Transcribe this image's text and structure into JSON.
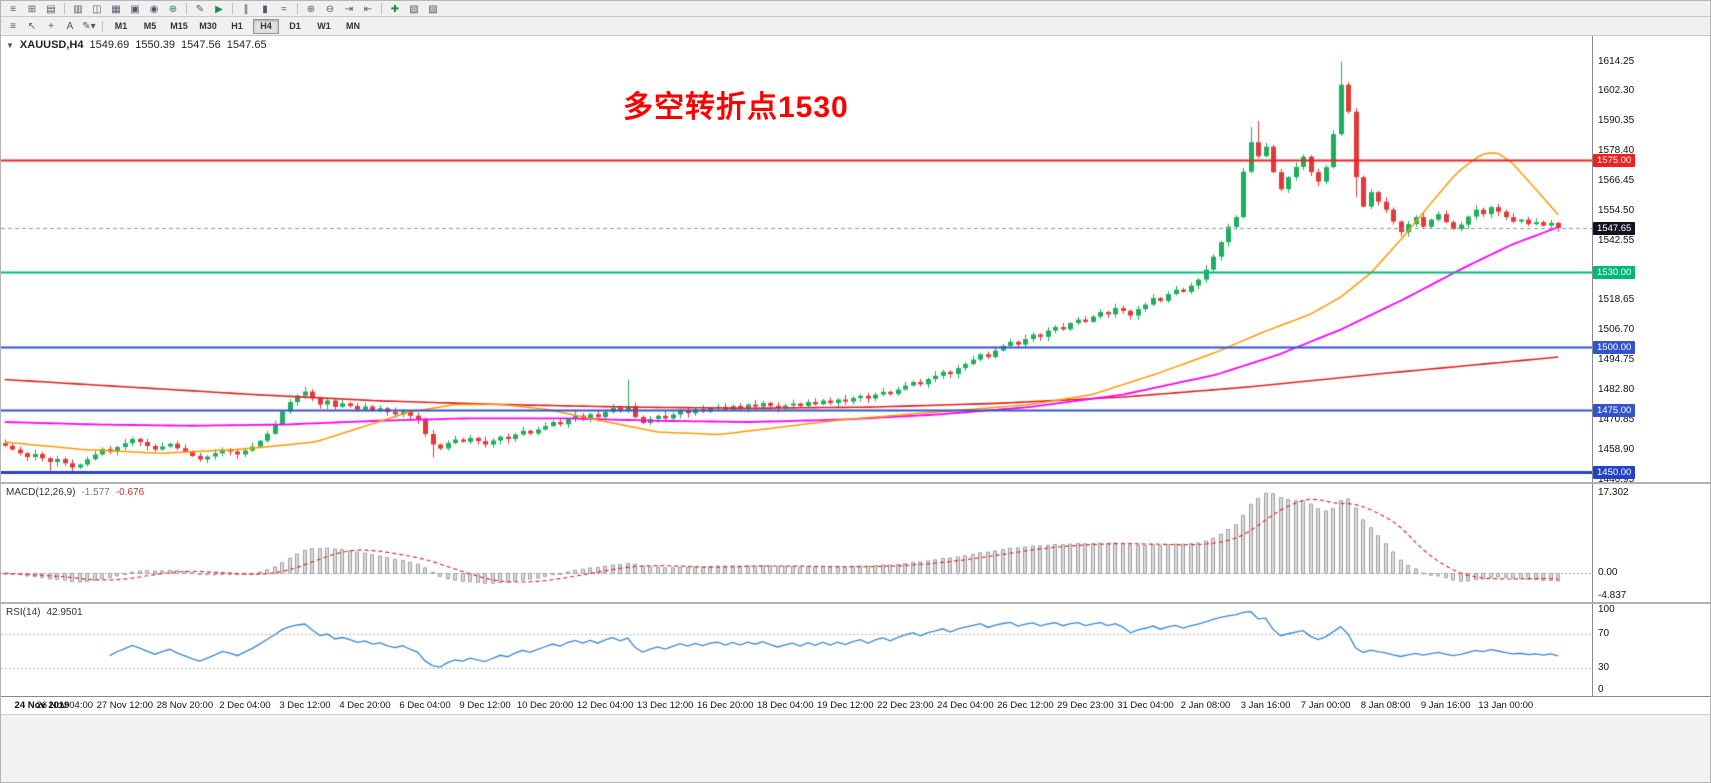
{
  "toolbar_top": {
    "buttons": [
      {
        "name": "menu",
        "glyph": "≡"
      },
      {
        "name": "new-chart",
        "glyph": "⊞"
      },
      {
        "name": "profiles",
        "glyph": "▤"
      },
      {
        "sep": true
      },
      {
        "name": "market-watch",
        "glyph": "▥"
      },
      {
        "name": "data-window",
        "glyph": "◫"
      },
      {
        "name": "navigator",
        "glyph": "▦"
      },
      {
        "name": "terminal",
        "glyph": "▣"
      },
      {
        "name": "strategy-tester",
        "glyph": "◉"
      },
      {
        "name": "new-order",
        "glyph": "⊕",
        "color": "#1a8f3c"
      },
      {
        "sep": true
      },
      {
        "name": "metaeditor",
        "glyph": "✎"
      },
      {
        "name": "autotrading",
        "glyph": "▶",
        "color": "#1a8f3c"
      },
      {
        "sep": true
      },
      {
        "name": "bar-chart",
        "glyph": "∥"
      },
      {
        "name": "candlestick-chart",
        "glyph": "▮"
      },
      {
        "name": "line-chart",
        "glyph": "≈"
      },
      {
        "sep": true
      },
      {
        "name": "zoom-in",
        "glyph": "⊕"
      },
      {
        "name": "zoom-out",
        "glyph": "⊖"
      },
      {
        "name": "auto-scroll",
        "glyph": "⇥"
      },
      {
        "name": "chart-shift",
        "glyph": "⇤"
      },
      {
        "sep": true
      },
      {
        "name": "indicators",
        "glyph": "✚",
        "color": "#1a8f3c"
      },
      {
        "name": "periods",
        "glyph": "▧"
      },
      {
        "name": "templates",
        "glyph": "▨"
      }
    ]
  },
  "toolbar_tf": {
    "tools": [
      {
        "name": "windows",
        "glyph": "≡"
      },
      {
        "name": "cursor",
        "glyph": "↖"
      },
      {
        "name": "crosshair",
        "glyph": "+"
      },
      {
        "name": "text-label",
        "glyph": "A"
      },
      {
        "name": "draw-tools",
        "glyph": "✎▾"
      }
    ],
    "timeframes": [
      "M1",
      "M5",
      "M15",
      "M30",
      "H1",
      "H4",
      "D1",
      "W1",
      "MN"
    ],
    "active": "H4"
  },
  "chart": {
    "header": {
      "collapse_glyph": "▼",
      "symbol": "XAUUSD,H4",
      "open": "1549.69",
      "high": "1550.39",
      "low": "1547.56",
      "close": "1547.65"
    },
    "annotation": {
      "text": "多空转折点1530",
      "color": "#fe0000"
    },
    "price_scale": {
      "min": 1446.0,
      "max": 1624.5,
      "ticks": [
        1614.25,
        1602.3,
        1590.35,
        1578.4,
        1566.45,
        1554.5,
        1542.55,
        1530.6,
        1518.65,
        1506.7,
        1494.75,
        1482.8,
        1470.85,
        1458.9,
        1446.95
      ]
    },
    "levels": [
      {
        "name": "resistance-line-1575",
        "price": 1575.0,
        "label": "1575.00",
        "color": "#f02020",
        "line_width": 2
      },
      {
        "name": "pivot-line-1530",
        "price": 1530.0,
        "label": "1530.00",
        "color": "#00b876",
        "line_width": 2
      },
      {
        "name": "support-line-1500",
        "price": 1500.0,
        "label": "1500.00",
        "color": "#3353cc",
        "line_width": 2
      },
      {
        "name": "support-line-1475",
        "price": 1475.0,
        "label": "1475.00",
        "color": "#3353cc",
        "line_width": 2
      },
      {
        "name": "support-line-1450",
        "price": 1450.0,
        "label": "1450.00",
        "color": "#2442c8",
        "line_width": 3
      }
    ],
    "current_price": {
      "price": 1547.65,
      "label": "1547.65",
      "tag_color": "#13131f",
      "line_color": "#8e99ad"
    },
    "candles": {
      "up_color": "#1fae5e",
      "down_color": "#e23a3a",
      "first_open": 1461.5,
      "wick_cycle": [
        1.5,
        0.7,
        1.2,
        0.5,
        1.8,
        0.9,
        0.6,
        1.3,
        0.8,
        1.6,
        0.4,
        1.1
      ],
      "high_overrides": {
        "83": 1487.0,
        "166": 1588.0,
        "167": 1590.4,
        "178": 1614.25,
        "179": 1606.0
      },
      "low_overrides": {
        "6": 1450.4,
        "9": 1449.6,
        "57": 1455.8,
        "180": 1560.0
      },
      "closes": [
        1460.5,
        1459.0,
        1457.5,
        1456.0,
        1457.2,
        1455.5,
        1454.0,
        1455.2,
        1453.5,
        1451.8,
        1453.0,
        1455.1,
        1457.0,
        1459.2,
        1458.1,
        1460.0,
        1461.5,
        1463.2,
        1462.0,
        1460.4,
        1459.0,
        1460.2,
        1461.3,
        1459.5,
        1458.0,
        1456.4,
        1455.0,
        1456.2,
        1457.5,
        1459.0,
        1458.2,
        1457.0,
        1458.6,
        1460.2,
        1462.5,
        1465.3,
        1469.0,
        1474.2,
        1478.0,
        1480.6,
        1482.2,
        1479.5,
        1477.0,
        1478.6,
        1476.1,
        1477.5,
        1476.4,
        1475.0,
        1476.2,
        1474.6,
        1475.5,
        1474.0,
        1473.1,
        1474.2,
        1472.5,
        1471.0,
        1465.2,
        1461.0,
        1459.4,
        1461.6,
        1463.0,
        1462.1,
        1463.6,
        1462.4,
        1461.0,
        1462.6,
        1464.1,
        1463.2,
        1465.0,
        1466.5,
        1465.4,
        1467.0,
        1468.4,
        1470.0,
        1469.1,
        1471.2,
        1472.6,
        1471.5,
        1473.1,
        1472.0,
        1474.0,
        1475.6,
        1474.4,
        1476.2,
        1472.0,
        1469.6,
        1471.2,
        1472.5,
        1471.4,
        1473.0,
        1474.6,
        1473.5,
        1475.1,
        1474.2,
        1475.6,
        1476.1,
        1475.0,
        1476.4,
        1475.4,
        1477.0,
        1476.2,
        1477.6,
        1476.5,
        1475.6,
        1476.6,
        1477.4,
        1476.4,
        1478.0,
        1477.1,
        1478.6,
        1477.6,
        1479.0,
        1478.2,
        1479.6,
        1480.5,
        1479.4,
        1481.0,
        1482.1,
        1481.2,
        1483.0,
        1484.6,
        1486.0,
        1485.1,
        1487.2,
        1488.5,
        1490.1,
        1489.2,
        1491.6,
        1493.2,
        1495.0,
        1497.1,
        1496.0,
        1498.6,
        1500.5,
        1502.1,
        1501.0,
        1503.2,
        1505.0,
        1504.1,
        1506.6,
        1508.0,
        1507.1,
        1509.6,
        1511.0,
        1510.1,
        1512.2,
        1514.0,
        1513.1,
        1515.6,
        1514.5,
        1512.6,
        1515.2,
        1517.0,
        1519.6,
        1518.5,
        1521.2,
        1523.0,
        1522.1,
        1524.6,
        1527.0,
        1531.0,
        1536.2,
        1542.0,
        1548.1,
        1552.0,
        1570.2,
        1582.0,
        1576.4,
        1580.2,
        1570.0,
        1563.2,
        1568.0,
        1572.1,
        1576.2,
        1570.0,
        1566.2,
        1572.0,
        1585.2,
        1605.0,
        1594.2,
        1568.0,
        1556.2,
        1562.0,
        1558.2,
        1555.0,
        1550.2,
        1546.0,
        1549.2,
        1552.0,
        1548.2,
        1551.0,
        1553.2,
        1550.0,
        1547.2,
        1549.0,
        1552.2,
        1555.0,
        1553.2,
        1556.0,
        1554.2,
        1552.0,
        1550.2,
        1551.0,
        1549.2,
        1550.0,
        1548.6,
        1549.7,
        1547.65
      ]
    },
    "mas": [
      {
        "name": "ma-slow-red",
        "color": "#e02020",
        "width": 1.6,
        "points": [
          [
            0,
            1487
          ],
          [
            0.08,
            1484
          ],
          [
            0.16,
            1481
          ],
          [
            0.24,
            1478.5
          ],
          [
            0.32,
            1477
          ],
          [
            0.4,
            1476
          ],
          [
            0.48,
            1475.5
          ],
          [
            0.56,
            1476
          ],
          [
            0.64,
            1477.5
          ],
          [
            0.72,
            1480
          ],
          [
            0.8,
            1484
          ],
          [
            0.88,
            1489
          ],
          [
            0.94,
            1492.5
          ],
          [
            1.0,
            1496
          ]
        ]
      },
      {
        "name": "ma-mid-magenta",
        "color": "#ff00ff",
        "width": 1.8,
        "points": [
          [
            0,
            1470
          ],
          [
            0.06,
            1469
          ],
          [
            0.12,
            1468.5
          ],
          [
            0.18,
            1469
          ],
          [
            0.24,
            1470.5
          ],
          [
            0.3,
            1471.5
          ],
          [
            0.36,
            1471.5
          ],
          [
            0.42,
            1470.5
          ],
          [
            0.48,
            1470
          ],
          [
            0.54,
            1471
          ],
          [
            0.6,
            1473
          ],
          [
            0.66,
            1476
          ],
          [
            0.72,
            1481
          ],
          [
            0.78,
            1489
          ],
          [
            0.82,
            1497
          ],
          [
            0.86,
            1507
          ],
          [
            0.9,
            1519
          ],
          [
            0.94,
            1532
          ],
          [
            0.97,
            1541
          ],
          [
            1.0,
            1548
          ]
        ]
      },
      {
        "name": "ma-fast-orange",
        "color": "#ff9900",
        "width": 1.5,
        "points": [
          [
            0,
            1462
          ],
          [
            0.05,
            1459
          ],
          [
            0.1,
            1457.5
          ],
          [
            0.15,
            1459
          ],
          [
            0.2,
            1462
          ],
          [
            0.23,
            1468
          ],
          [
            0.26,
            1474
          ],
          [
            0.29,
            1477
          ],
          [
            0.32,
            1477
          ],
          [
            0.35,
            1475
          ],
          [
            0.38,
            1471
          ],
          [
            0.42,
            1466
          ],
          [
            0.46,
            1465
          ],
          [
            0.5,
            1468
          ],
          [
            0.54,
            1471
          ],
          [
            0.58,
            1473
          ],
          [
            0.62,
            1475
          ],
          [
            0.66,
            1477
          ],
          [
            0.7,
            1481
          ],
          [
            0.74,
            1489
          ],
          [
            0.78,
            1498
          ],
          [
            0.81,
            1506
          ],
          [
            0.84,
            1513
          ],
          [
            0.86,
            1520
          ],
          [
            0.88,
            1530
          ],
          [
            0.9,
            1544
          ],
          [
            0.92,
            1559
          ],
          [
            0.935,
            1570
          ],
          [
            0.95,
            1577
          ],
          [
            0.96,
            1578
          ],
          [
            0.97,
            1574
          ],
          [
            0.98,
            1567
          ],
          [
            0.99,
            1560
          ],
          [
            1.0,
            1553
          ]
        ]
      }
    ]
  },
  "macd": {
    "name": "MACD(12,26,9)",
    "value_main": "-1.577",
    "value_signal": "-0.676",
    "range": [
      -6.2,
      19.3
    ],
    "peak": 17.302,
    "hist_fill": "#dcdcdc",
    "hist_stroke": "#9f9f9f",
    "signal_color": "#e03030",
    "ticks": [
      {
        "v": 17.302,
        "t": "17.302"
      },
      {
        "v": 0,
        "t": "0.00"
      },
      {
        "v": -4.837,
        "t": "-4.837"
      }
    ]
  },
  "rsi": {
    "name": "RSI(14)",
    "value": "42.9501",
    "range": [
      -2,
      104
    ],
    "levels": [
      70,
      30
    ],
    "line_color": "#3a87d4",
    "ticks": [
      {
        "v": 100,
        "t": "100"
      },
      {
        "v": 70,
        "t": "70"
      },
      {
        "v": 30,
        "t": "30"
      },
      {
        "v": 0,
        "t": "0"
      }
    ]
  },
  "time_axis": {
    "step": 8,
    "labels": [
      "24 Nov 2019",
      "26 Nov 04:00",
      "27 Nov 12:00",
      "28 Nov 20:00",
      "2 Dec 04:00",
      "3 Dec 12:00",
      "4 Dec 20:00",
      "6 Dec 04:00",
      "9 Dec 12:00",
      "10 Dec 20:00",
      "12 Dec 04:00",
      "13 Dec 12:00",
      "16 Dec 20:00",
      "18 Dec 04:00",
      "19 Dec 12:00",
      "22 Dec 23:00",
      "24 Dec 04:00",
      "26 Dec 12:00",
      "29 Dec 23:00",
      "31 Dec 04:00",
      "2 Jan 08:00",
      "3 Jan 16:00",
      "7 Jan 00:00",
      "8 Jan 08:00",
      "9 Jan 16:00",
      "13 Jan 00:00"
    ]
  }
}
